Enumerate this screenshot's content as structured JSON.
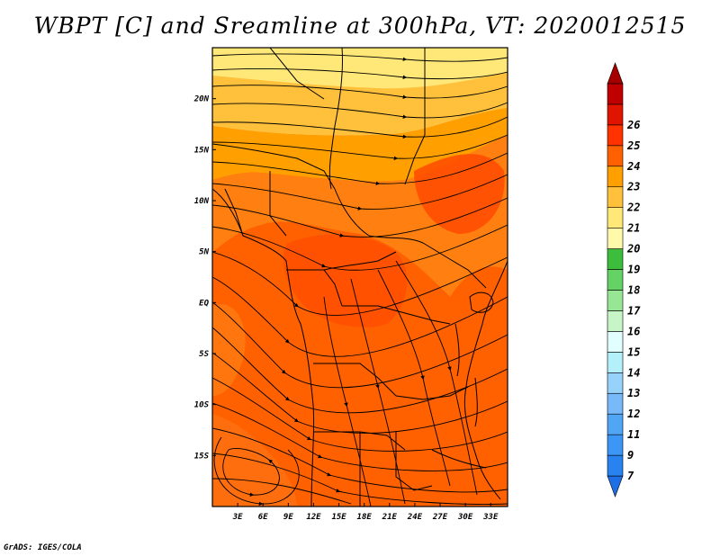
{
  "title": "WBPT [C] and Sreamline at 300hPa, VT: 2020012515",
  "credit": "GrADS: IGES/COLA",
  "chart_data": {
    "type": "heatmap",
    "title": "WBPT [C] and Sreamline at 300hPa, VT: 2020012515",
    "variable": "Wet-bulb potential temperature [C] with streamlines",
    "level": "300hPa",
    "valid_time": "2020012515",
    "x_axis": {
      "range": [
        0,
        35
      ],
      "ticks": [
        3,
        6,
        9,
        12,
        15,
        18,
        21,
        24,
        27,
        30,
        33
      ],
      "tick_labels": [
        "3E",
        "6E",
        "9E",
        "12E",
        "15E",
        "18E",
        "21E",
        "24E",
        "27E",
        "30E",
        "33E"
      ]
    },
    "y_axis": {
      "range": [
        -20,
        25
      ],
      "ticks": [
        20,
        15,
        10,
        5,
        0,
        -5,
        -10,
        -15
      ],
      "tick_labels": [
        "20N",
        "15N",
        "10N",
        "5N",
        "EQ",
        "5S",
        "10S",
        "15S"
      ]
    },
    "colorbar": {
      "levels": [
        7,
        9,
        11,
        12,
        13,
        14,
        15,
        16,
        17,
        18,
        19,
        20,
        21,
        22,
        23,
        24,
        25,
        26
      ],
      "level_labels": [
        "7",
        "9",
        "11",
        "12",
        "13",
        "14",
        "15",
        "16",
        "17",
        "18",
        "19",
        "20",
        "21",
        "22",
        "23",
        "24",
        "25",
        "26"
      ],
      "colors": [
        "#1e6ee6",
        "#2882f0",
        "#3c96f5",
        "#50a5f5",
        "#78b9fa",
        "#96d2fa",
        "#b4f0fa",
        "#e1ffff",
        "#c8f5c8",
        "#96e696",
        "#64d264",
        "#3cbe3c",
        "#fffaaa",
        "#ffe878",
        "#ffc03c",
        "#ffa000",
        "#ff6000",
        "#ff3200",
        "#e11400",
        "#c00000",
        "#a50000"
      ]
    },
    "field_description": "Values mostly 21-22 C in the north (near 20N-25N), 22-23 C across the Sahel, 23-24 C over Central and southern Africa with a few patches near 24"
  }
}
